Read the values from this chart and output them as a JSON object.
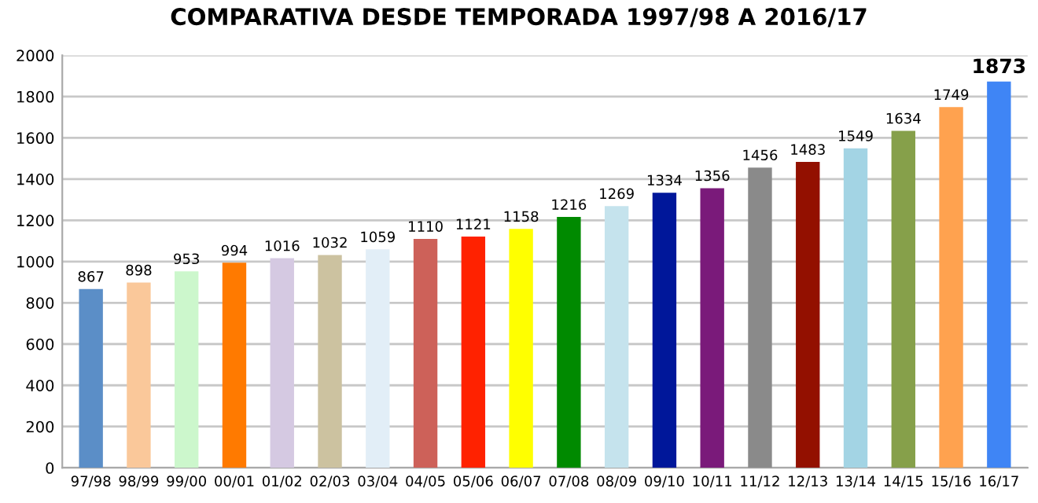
{
  "chart_data": {
    "type": "bar",
    "title": "COMPARATIVA DESDE TEMPORADA 1997/98 A 2016/17",
    "categories": [
      "97/98",
      "98/99",
      "99/00",
      "00/01",
      "01/02",
      "02/03",
      "03/04",
      "04/05",
      "05/06",
      "06/07",
      "07/08",
      "08/09",
      "09/10",
      "10/11",
      "11/12",
      "12/13",
      "13/14",
      "14/15",
      "15/16",
      "16/17"
    ],
    "values": [
      867,
      898,
      953,
      994,
      1016,
      1032,
      1059,
      1110,
      1121,
      1158,
      1216,
      1269,
      1334,
      1356,
      1456,
      1483,
      1549,
      1634,
      1749,
      1873
    ],
    "colors": [
      "#5b8ec7",
      "#fac89a",
      "#ccf7cc",
      "#ff7a00",
      "#d5c9e2",
      "#ccc2a0",
      "#e2eef7",
      "#cd6159",
      "#ff2200",
      "#ffff00",
      "#008a00",
      "#c5e3ed",
      "#00179a",
      "#7a1a7a",
      "#8a8a8a",
      "#931000",
      "#a3d4e4",
      "#86a04a",
      "#ffa24f",
      "#3f85f5"
    ],
    "ylim": [
      0,
      2000
    ],
    "yticks": [
      0,
      200,
      400,
      600,
      800,
      1000,
      1200,
      1400,
      1600,
      1800,
      2000
    ],
    "grid": "y",
    "data_labels": true
  }
}
